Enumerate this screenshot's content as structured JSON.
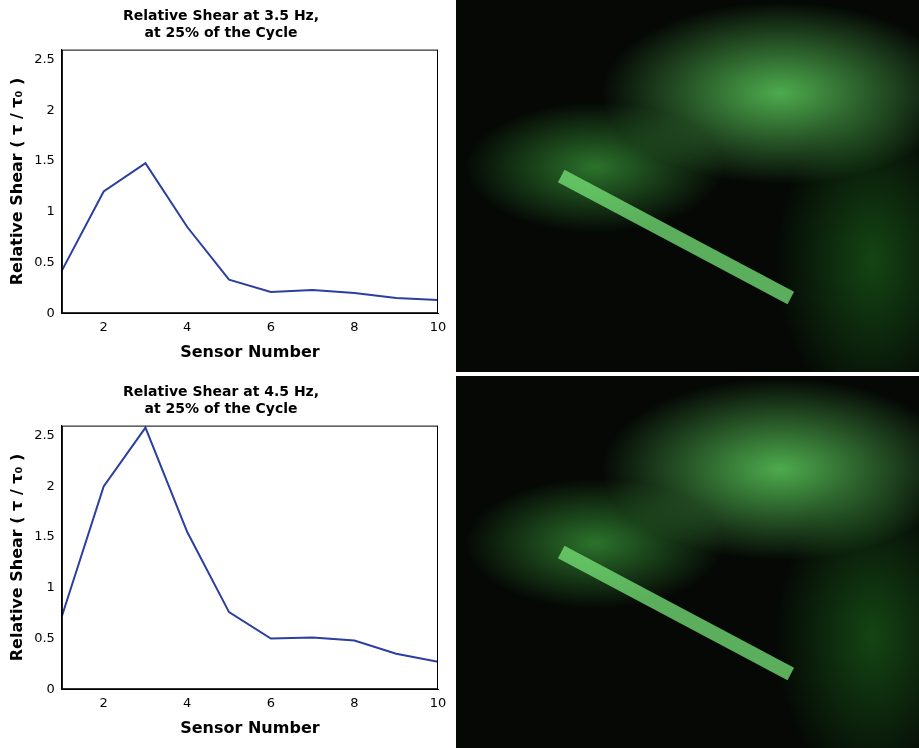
{
  "chart_data": [
    {
      "type": "line",
      "title": [
        "Relative Shear at 3.5 Hz,",
        "at 25% of the Cycle"
      ],
      "x_label": "Sensor Number",
      "y_label": "Relative Shear ( τ / τ₀ )",
      "x": [
        1,
        2,
        3,
        4,
        5,
        6,
        7,
        8,
        9,
        10
      ],
      "values": [
        0.42,
        1.2,
        1.48,
        0.85,
        0.33,
        0.21,
        0.23,
        0.2,
        0.15,
        0.13
      ],
      "color": "#2a3f9e",
      "xlim": [
        1,
        10
      ],
      "xticks": [
        2,
        4,
        6,
        8,
        10
      ],
      "ylim": [
        0,
        2.6
      ],
      "yticks": [
        0,
        0.5,
        1,
        1.5,
        2,
        2.5
      ],
      "grid": false
    },
    {
      "type": "line",
      "title": [
        "Relative Shear at 4.5 Hz,",
        "at 25% of the Cycle"
      ],
      "x_label": "Sensor Number",
      "y_label": "Relative Shear ( τ / τ₀ )",
      "x": [
        1,
        2,
        3,
        4,
        5,
        6,
        7,
        8,
        9,
        10
      ],
      "values": [
        0.72,
        2.0,
        2.58,
        1.55,
        0.76,
        0.5,
        0.51,
        0.48,
        0.35,
        0.27
      ],
      "color": "#2a3f9e",
      "xlim": [
        1,
        10
      ],
      "xticks": [
        2,
        4,
        6,
        8,
        10
      ],
      "ylim": [
        0,
        2.6
      ],
      "yticks": [
        0,
        0.5,
        1,
        1.5,
        2,
        2.5
      ],
      "grid": false
    }
  ]
}
